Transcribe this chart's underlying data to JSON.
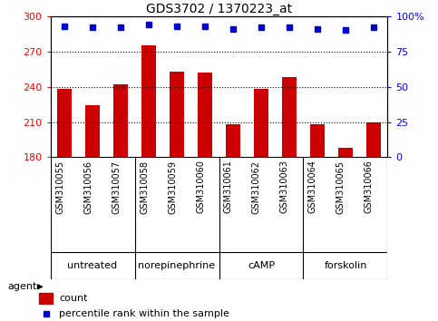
{
  "title": "GDS3702 / 1370223_at",
  "samples": [
    "GSM310055",
    "GSM310056",
    "GSM310057",
    "GSM310058",
    "GSM310059",
    "GSM310060",
    "GSM310061",
    "GSM310062",
    "GSM310063",
    "GSM310064",
    "GSM310065",
    "GSM310066"
  ],
  "bar_values": [
    238,
    224,
    242,
    275,
    253,
    252,
    208,
    238,
    248,
    208,
    188,
    210
  ],
  "pct_values": [
    93,
    92,
    92,
    94,
    93,
    93,
    91,
    92,
    92,
    91,
    90,
    92
  ],
  "bar_color": "#cc0000",
  "pct_color": "#0000cc",
  "ylim_left": [
    180,
    300
  ],
  "ylim_right": [
    0,
    100
  ],
  "yticks_left": [
    180,
    210,
    240,
    270,
    300
  ],
  "yticks_right": [
    0,
    25,
    50,
    75,
    100
  ],
  "groups": [
    {
      "label": "untreated",
      "start": 0,
      "end": 3
    },
    {
      "label": "norepinephrine",
      "start": 3,
      "end": 6
    },
    {
      "label": "cAMP",
      "start": 6,
      "end": 9
    },
    {
      "label": "forskolin",
      "start": 9,
      "end": 12
    }
  ],
  "group_color": "#90ee90",
  "tick_label_area_color": "#c8c8c8",
  "agent_label": "agent",
  "legend_count_label": "count",
  "legend_pct_label": "percentile rank within the sample",
  "background_color": "#ffffff",
  "plot_bg_color": "#ffffff",
  "figsize": [
    4.83,
    3.54
  ],
  "dpi": 100
}
